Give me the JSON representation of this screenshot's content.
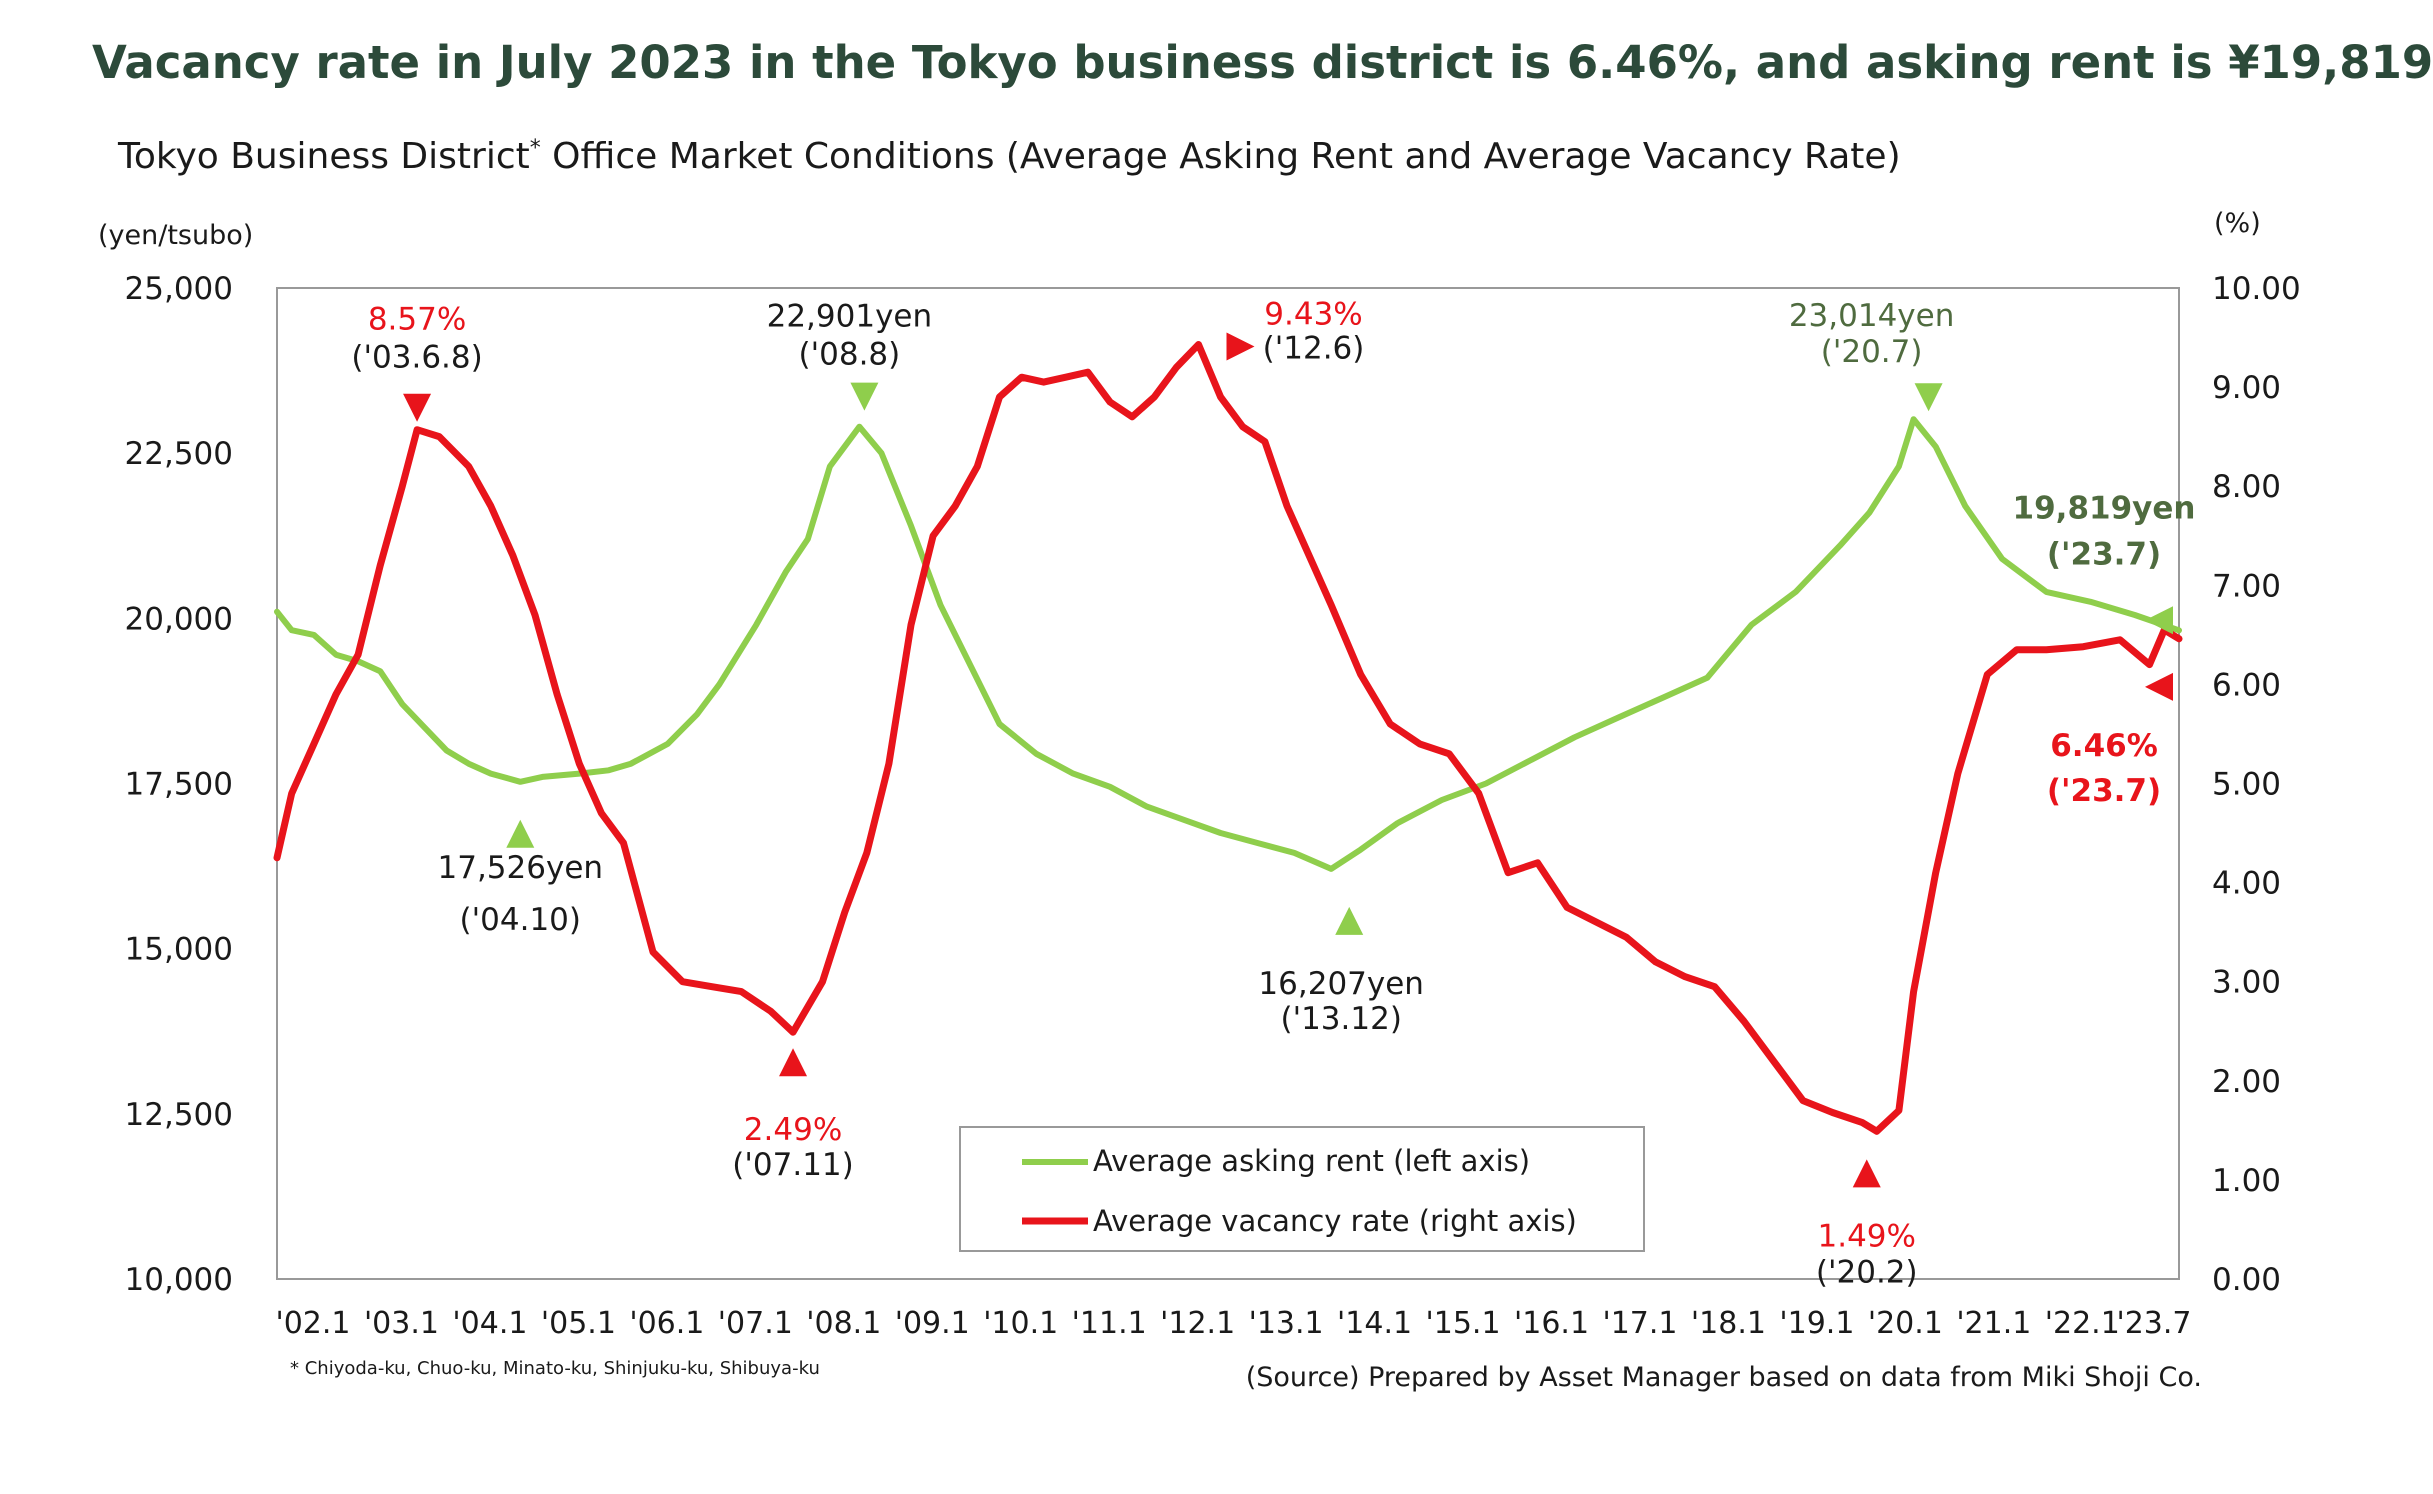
{
  "headline": "Vacancy rate in July 2023 in the Tokyo business district is 6.46%, and asking rent is ¥19,819",
  "colors": {
    "headline": "#2c4a3a",
    "rent": "#8fce4c",
    "vacancy": "#e8141b",
    "rent_label": "#4f6b3f"
  },
  "chart_data": {
    "type": "line",
    "title": "Tokyo Business District",
    "title_mark": "*",
    "title_rest": " Office Market Conditions (Average Asking Rent and Average Vacancy Rate)",
    "ylabel_left": "(yen/tsubo)",
    "ylabel_right": "(%)",
    "ylim_left": [
      10000,
      25000
    ],
    "ylim_right": [
      0,
      10
    ],
    "yticks_left": [
      "25,000",
      "22,500",
      "20,000",
      "17,500",
      "15,000",
      "12,500",
      "10,000"
    ],
    "yticks_right": [
      "10.00",
      "9.00",
      "8.00",
      "7.00",
      "6.00",
      "5.00",
      "4.00",
      "3.00",
      "2.00",
      "1.00",
      "0.00"
    ],
    "xrange": [
      "2002-01",
      "2023-07"
    ],
    "xticks": [
      "'02.1",
      "'03.1",
      "'04.1",
      "'05.1",
      "'06.1",
      "'07.1",
      "'08.1",
      "'09.1",
      "'10.1",
      "'11.1",
      "'12.1",
      "'13.1",
      "'14.1",
      "'15.1",
      "'16.1",
      "'17.1",
      "'18.1",
      "'19.1",
      "'20.1",
      "'21.1",
      "'22.1",
      "'23.7"
    ],
    "legend": {
      "placement": "bottom-center",
      "items": [
        "Average asking rent (left axis)",
        "Average vacancy rate (right axis)"
      ]
    },
    "grid": false,
    "series": [
      {
        "name": "Average asking rent (left axis)",
        "axis": "left",
        "points": [
          [
            "2002-01",
            20100
          ],
          [
            "2002-03",
            19820
          ],
          [
            "2002-06",
            19750
          ],
          [
            "2002-09",
            19450
          ],
          [
            "2002-12",
            19350
          ],
          [
            "2003-03",
            19200
          ],
          [
            "2003-06",
            18700
          ],
          [
            "2003-09",
            18350
          ],
          [
            "2003-12",
            18000
          ],
          [
            "2004-03",
            17800
          ],
          [
            "2004-06",
            17650
          ],
          [
            "2004-10",
            17526
          ],
          [
            "2005-01",
            17600
          ],
          [
            "2005-06",
            17650
          ],
          [
            "2005-10",
            17700
          ],
          [
            "2006-01",
            17800
          ],
          [
            "2006-06",
            18100
          ],
          [
            "2006-10",
            18550
          ],
          [
            "2007-01",
            19000
          ],
          [
            "2007-06",
            19900
          ],
          [
            "2007-10",
            20700
          ],
          [
            "2008-01",
            21200
          ],
          [
            "2008-04",
            22300
          ],
          [
            "2008-08",
            22901
          ],
          [
            "2008-11",
            22500
          ],
          [
            "2009-03",
            21400
          ],
          [
            "2009-07",
            20200
          ],
          [
            "2009-11",
            19300
          ],
          [
            "2010-03",
            18400
          ],
          [
            "2010-08",
            17950
          ],
          [
            "2011-01",
            17650
          ],
          [
            "2011-06",
            17450
          ],
          [
            "2011-11",
            17150
          ],
          [
            "2012-04",
            16950
          ],
          [
            "2012-09",
            16750
          ],
          [
            "2013-02",
            16600
          ],
          [
            "2013-07",
            16450
          ],
          [
            "2013-12",
            16207
          ],
          [
            "2014-04",
            16500
          ],
          [
            "2014-09",
            16900
          ],
          [
            "2015-03",
            17250
          ],
          [
            "2015-09",
            17500
          ],
          [
            "2016-03",
            17850
          ],
          [
            "2016-09",
            18200
          ],
          [
            "2017-03",
            18500
          ],
          [
            "2017-09",
            18800
          ],
          [
            "2018-03",
            19100
          ],
          [
            "2018-09",
            19900
          ],
          [
            "2019-03",
            20400
          ],
          [
            "2019-09",
            21100
          ],
          [
            "2020-01",
            21600
          ],
          [
            "2020-05",
            22300
          ],
          [
            "2020-07",
            23014
          ],
          [
            "2020-10",
            22600
          ],
          [
            "2021-02",
            21700
          ],
          [
            "2021-07",
            20900
          ],
          [
            "2022-01",
            20400
          ],
          [
            "2022-07",
            20250
          ],
          [
            "2023-01",
            20050
          ],
          [
            "2023-07",
            19819
          ]
        ]
      },
      {
        "name": "Average vacancy rate (right axis)",
        "axis": "right",
        "points": [
          [
            "2002-01",
            4.25
          ],
          [
            "2002-03",
            4.9
          ],
          [
            "2002-06",
            5.4
          ],
          [
            "2002-09",
            5.9
          ],
          [
            "2002-12",
            6.3
          ],
          [
            "2003-03",
            7.2
          ],
          [
            "2003-06",
            8.0
          ],
          [
            "2003-08",
            8.57
          ],
          [
            "2003-11",
            8.5
          ],
          [
            "2004-03",
            8.2
          ],
          [
            "2004-06",
            7.8
          ],
          [
            "2004-09",
            7.3
          ],
          [
            "2004-12",
            6.7
          ],
          [
            "2005-03",
            5.9
          ],
          [
            "2005-06",
            5.2
          ],
          [
            "2005-09",
            4.7
          ],
          [
            "2005-12",
            4.4
          ],
          [
            "2006-04",
            3.3
          ],
          [
            "2006-08",
            3.0
          ],
          [
            "2006-12",
            2.95
          ],
          [
            "2007-04",
            2.9
          ],
          [
            "2007-08",
            2.7
          ],
          [
            "2007-11",
            2.49
          ],
          [
            "2008-03",
            3.0
          ],
          [
            "2008-06",
            3.7
          ],
          [
            "2008-09",
            4.3
          ],
          [
            "2008-12",
            5.2
          ],
          [
            "2009-03",
            6.6
          ],
          [
            "2009-06",
            7.5
          ],
          [
            "2009-09",
            7.8
          ],
          [
            "2009-12",
            8.2
          ],
          [
            "2010-03",
            8.9
          ],
          [
            "2010-06",
            9.1
          ],
          [
            "2010-09",
            9.05
          ],
          [
            "2010-12",
            9.1
          ],
          [
            "2011-03",
            9.15
          ],
          [
            "2011-06",
            8.85
          ],
          [
            "2011-09",
            8.7
          ],
          [
            "2011-12",
            8.9
          ],
          [
            "2012-03",
            9.2
          ],
          [
            "2012-06",
            9.43
          ],
          [
            "2012-09",
            8.9
          ],
          [
            "2012-12",
            8.6
          ],
          [
            "2013-03",
            8.45
          ],
          [
            "2013-06",
            7.8
          ],
          [
            "2013-09",
            7.3
          ],
          [
            "2013-12",
            6.8
          ],
          [
            "2014-04",
            6.1
          ],
          [
            "2014-08",
            5.6
          ],
          [
            "2014-12",
            5.4
          ],
          [
            "2015-04",
            5.3
          ],
          [
            "2015-08",
            4.9
          ],
          [
            "2015-12",
            4.1
          ],
          [
            "2016-04",
            4.2
          ],
          [
            "2016-08",
            3.75
          ],
          [
            "2016-12",
            3.6
          ],
          [
            "2017-04",
            3.45
          ],
          [
            "2017-08",
            3.2
          ],
          [
            "2017-12",
            3.05
          ],
          [
            "2018-04",
            2.95
          ],
          [
            "2018-08",
            2.6
          ],
          [
            "2018-12",
            2.2
          ],
          [
            "2019-04",
            1.8
          ],
          [
            "2019-08",
            1.68
          ],
          [
            "2019-12",
            1.58
          ],
          [
            "2020-02",
            1.49
          ],
          [
            "2020-05",
            1.7
          ],
          [
            "2020-07",
            2.9
          ],
          [
            "2020-10",
            4.1
          ],
          [
            "2021-01",
            5.1
          ],
          [
            "2021-05",
            6.1
          ],
          [
            "2021-09",
            6.35
          ],
          [
            "2022-01",
            6.35
          ],
          [
            "2022-06",
            6.38
          ],
          [
            "2022-11",
            6.45
          ],
          [
            "2023-03",
            6.2
          ],
          [
            "2023-05",
            6.55
          ],
          [
            "2023-07",
            6.46
          ]
        ]
      }
    ],
    "annotations": [
      {
        "series": "vacancy",
        "x": "2003-08",
        "value_label": "8.57%",
        "date_label": "('03.6.8)"
      },
      {
        "series": "rent",
        "x": "2004-10",
        "value_label": "17,526yen",
        "date_label": "('04.10)"
      },
      {
        "series": "vacancy",
        "x": "2007-11",
        "value_label": "2.49%",
        "date_label": "('07.11)"
      },
      {
        "series": "rent",
        "x": "2008-08",
        "value_label": "22,901yen",
        "date_label": "('08.8)"
      },
      {
        "series": "vacancy",
        "x": "2012-06",
        "value_label": "9.43%",
        "date_label": "('12.6)"
      },
      {
        "series": "rent",
        "x": "2013-12",
        "value_label": "16,207yen",
        "date_label": "('13.12)"
      },
      {
        "series": "vacancy",
        "x": "2020-02",
        "value_label": "1.49%",
        "date_label": "('20.2)"
      },
      {
        "series": "rent",
        "x": "2020-07",
        "value_label": "23,014yen",
        "date_label": "('20.7)"
      },
      {
        "series": "rent",
        "x": "2023-07",
        "value_label": "19,819yen",
        "date_label": "('23.7)"
      },
      {
        "series": "vacancy",
        "x": "2023-07",
        "value_label": "6.46%",
        "date_label": "('23.7)"
      }
    ]
  },
  "footnote": "* Chiyoda-ku, Chuo-ku, Minato-ku, Shinjuku-ku, Shibuya-ku",
  "source": "(Source) Prepared by Asset Manager based on data from Miki Shoji Co."
}
